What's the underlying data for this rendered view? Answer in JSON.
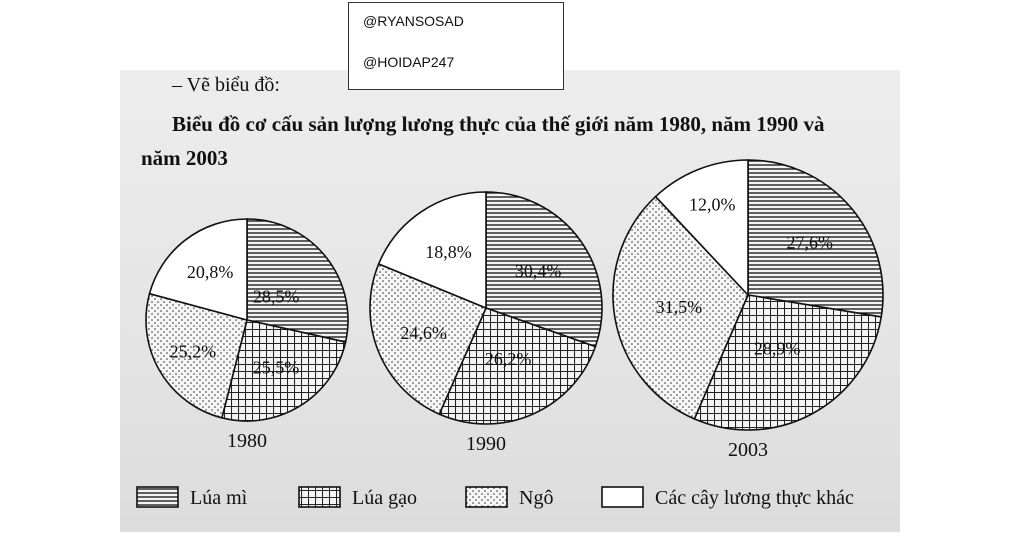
{
  "watermark": {
    "line1": "@RYANSOSAD",
    "line2": "@HOIDAP247"
  },
  "heading": "– Vẽ biểu đồ:",
  "chart_data": {
    "type": "pie",
    "title_line1": "Biểu đồ cơ cấu sản lượng lương thực của thế giới năm 1980, năm 1990 và",
    "title_line2": "năm 2003",
    "categories": [
      "Lúa mì",
      "Lúa gạo",
      "Ngô",
      "Các cây lương thực khác"
    ],
    "patterns": [
      "horizontal-lines",
      "grid",
      "dots",
      "blank"
    ],
    "pies": [
      {
        "year": "1980",
        "values": [
          28.5,
          25.5,
          25.2,
          20.8
        ],
        "labels": [
          "28,5%",
          "25,5%",
          "25,2%",
          "20,8%"
        ]
      },
      {
        "year": "1990",
        "values": [
          30.4,
          26.2,
          24.6,
          18.8
        ],
        "labels": [
          "30,4%",
          "26,2%",
          "24,6%",
          "18,8%"
        ]
      },
      {
        "year": "2003",
        "values": [
          27.6,
          28.9,
          31.5,
          12.0
        ],
        "labels": [
          "27,6%",
          "28,9%",
          "31,5%",
          "12,0%"
        ]
      }
    ],
    "legend_position": "bottom"
  }
}
